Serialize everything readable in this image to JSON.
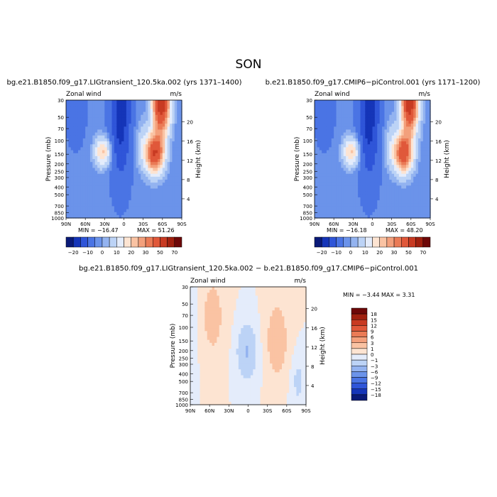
{
  "figure": {
    "title": "SON"
  },
  "chart_data": [
    {
      "type": "heatmap",
      "title": "bg.e21.B1850.f09_g17.LIGtransient_120.5ka.002 (yrs 1371–1400)",
      "subtitle_left": "Zonal wind",
      "subtitle_right": "m/s",
      "xlabel": "",
      "ylabel": "Pressure (mb)",
      "ylabel_right": "Height (km)",
      "x_ticks": [
        "90N",
        "60N",
        "30N",
        "0",
        "30S",
        "60S",
        "90S"
      ],
      "y_ticks": [
        "30",
        "50",
        "70",
        "100",
        "150",
        "200",
        "250",
        "300",
        "400",
        "500",
        "700",
        "850",
        "1000"
      ],
      "y2_ticks": [
        "20",
        "16",
        "12",
        "8",
        "4"
      ],
      "y_scale": "log",
      "min_label": "MIN = −16.47",
      "max_label": "MAX =   51.26",
      "min": -16.47,
      "max": 51.26,
      "colorbar_labels": [
        "−20",
        "−10",
        "0",
        "10",
        "20",
        "30",
        "50",
        "70"
      ]
    },
    {
      "type": "heatmap",
      "title": "b.e21.B1850.f09_g17.CMIP6−piControl.001 (yrs 1171–1200)",
      "subtitle_left": "Zonal wind",
      "subtitle_right": "m/s",
      "xlabel": "",
      "ylabel": "Pressure (mb)",
      "ylabel_right": "Height (km)",
      "x_ticks": [
        "90N",
        "60N",
        "30N",
        "0",
        "30S",
        "60S",
        "90S"
      ],
      "y_ticks": [
        "30",
        "50",
        "70",
        "100",
        "150",
        "200",
        "250",
        "300",
        "400",
        "500",
        "700",
        "850",
        "1000"
      ],
      "y2_ticks": [
        "20",
        "16",
        "12",
        "8",
        "4"
      ],
      "y_scale": "log",
      "min_label": "MIN = −16.18",
      "max_label": "MAX =   48.20",
      "min": -16.18,
      "max": 48.2,
      "colorbar_labels": [
        "−20",
        "−10",
        "0",
        "10",
        "20",
        "30",
        "50",
        "70"
      ]
    },
    {
      "type": "heatmap",
      "title": "bg.e21.B1850.f09_g17.LIGtransient_120.5ka.002 − b.e21.B1850.f09_g17.CMIP6−piControl.001",
      "subtitle_left": "Zonal wind",
      "subtitle_right": "m/s",
      "xlabel": "",
      "ylabel": "Pressure (mb)",
      "ylabel_right": "Height (km)",
      "x_ticks": [
        "90N",
        "60N",
        "30N",
        "0",
        "30S",
        "60S",
        "90S"
      ],
      "y_ticks": [
        "30",
        "50",
        "70",
        "100",
        "150",
        "200",
        "250",
        "300",
        "400",
        "500",
        "700",
        "850",
        "1000"
      ],
      "y2_ticks": [
        "20",
        "16",
        "12",
        "8",
        "4"
      ],
      "y_scale": "log",
      "min_label": "MIN =   −3.44",
      "max_label": "MAX =     3.31",
      "min": -3.44,
      "max": 3.31,
      "colorbar_labels": [
        "18",
        "15",
        "12",
        "9",
        "6",
        "3",
        "1",
        "0",
        "−1",
        "−3",
        "−6",
        "−9",
        "−12",
        "−15",
        "−18"
      ]
    }
  ],
  "colors": {
    "full_scale": [
      "#0a1a78",
      "#1535b8",
      "#2f55d8",
      "#4a74e4",
      "#6b93ea",
      "#93b3f0",
      "#bcd3f6",
      "#e4ecfb",
      "#fde4d2",
      "#fac3a3",
      "#f3a07c",
      "#ea7b56",
      "#e0583a",
      "#c83a22",
      "#a0200f",
      "#6e0808"
    ],
    "diff_scale": [
      "#0a1a78",
      "#1535b8",
      "#2f55d8",
      "#4a74e4",
      "#6b93ea",
      "#93b3f0",
      "#bcd3f6",
      "#e4ecfb",
      "#fde4d2",
      "#fac3a3",
      "#f3a07c",
      "#ea7b56",
      "#e0583a",
      "#c83a22",
      "#a0200f",
      "#6e0808"
    ]
  }
}
